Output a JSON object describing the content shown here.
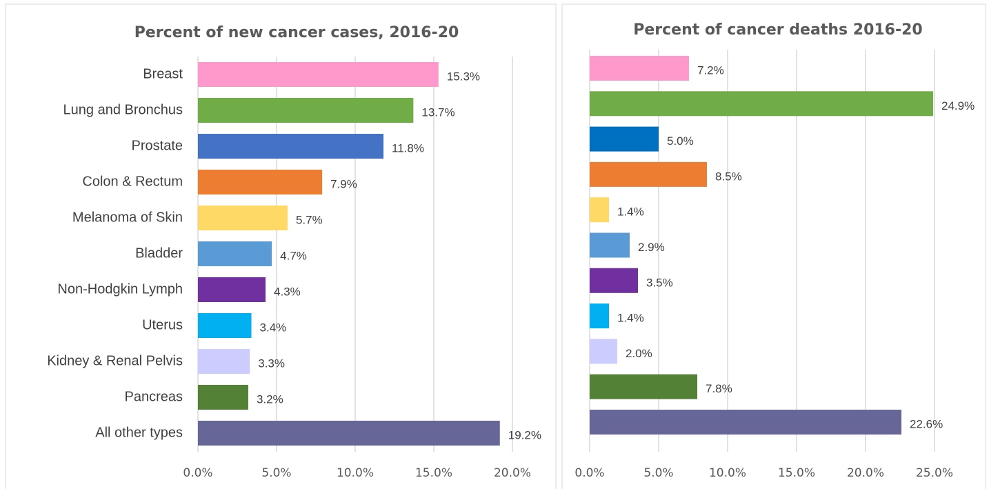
{
  "chart_data": [
    {
      "type": "hbar",
      "title": "Percent of new cancer cases, 2016-20",
      "categories": [
        "Breast",
        "Lung and Bronchus",
        "Prostate",
        "Colon & Rectum",
        "Melanoma of Skin",
        "Bladder",
        "Non-Hodgkin Lymph",
        "Uterus",
        "Kidney & Renal Pelvis",
        "Pancreas",
        "All other types"
      ],
      "values": [
        15.3,
        13.7,
        11.8,
        7.9,
        5.7,
        4.7,
        4.3,
        3.4,
        3.3,
        3.2,
        19.2
      ],
      "value_labels": [
        "15.3%",
        "13.7%",
        "11.8%",
        "7.9%",
        "5.7%",
        "4.7%",
        "4.3%",
        "3.4%",
        "3.3%",
        "3.2%",
        "19.2%"
      ],
      "colors": [
        "#ff99cc",
        "#70ad47",
        "#4472c4",
        "#ed7d31",
        "#ffd966",
        "#5b9bd5",
        "#7030a0",
        "#00b0f0",
        "#ccccff",
        "#538135",
        "#666699"
      ],
      "xlim": [
        0,
        20
      ],
      "xticks": [
        {
          "value": 0,
          "label": "0.0%"
        },
        {
          "value": 5,
          "label": "5.0%"
        },
        {
          "value": 10,
          "label": "10.0%"
        },
        {
          "value": 15,
          "label": "15.0%"
        },
        {
          "value": 20,
          "label": "20.0%"
        }
      ],
      "grid": true
    },
    {
      "type": "hbar",
      "title": "Percent of cancer deaths 2016-20",
      "values": [
        7.2,
        24.9,
        5.0,
        8.5,
        1.4,
        2.9,
        3.5,
        1.4,
        2.0,
        7.8,
        22.6
      ],
      "value_labels": [
        "7.2%",
        "24.9%",
        "5.0%",
        "8.5%",
        "1.4%",
        "2.9%",
        "3.5%",
        "1.4%",
        "2.0%",
        "7.8%",
        "22.6%"
      ],
      "colors": [
        "#ff99cc",
        "#70ad47",
        "#0070c0",
        "#ed7d31",
        "#ffd966",
        "#5b9bd5",
        "#7030a0",
        "#00b0f0",
        "#ccccff",
        "#538135",
        "#666699"
      ],
      "xlim": [
        0,
        25
      ],
      "xticks": [
        {
          "value": 0,
          "label": "0.0%"
        },
        {
          "value": 5,
          "label": "5.0%"
        },
        {
          "value": 10,
          "label": "10.0%"
        },
        {
          "value": 15,
          "label": "15.0%"
        },
        {
          "value": 20,
          "label": "20.0%"
        },
        {
          "value": 25,
          "label": "25.0%"
        }
      ],
      "grid": true
    }
  ]
}
